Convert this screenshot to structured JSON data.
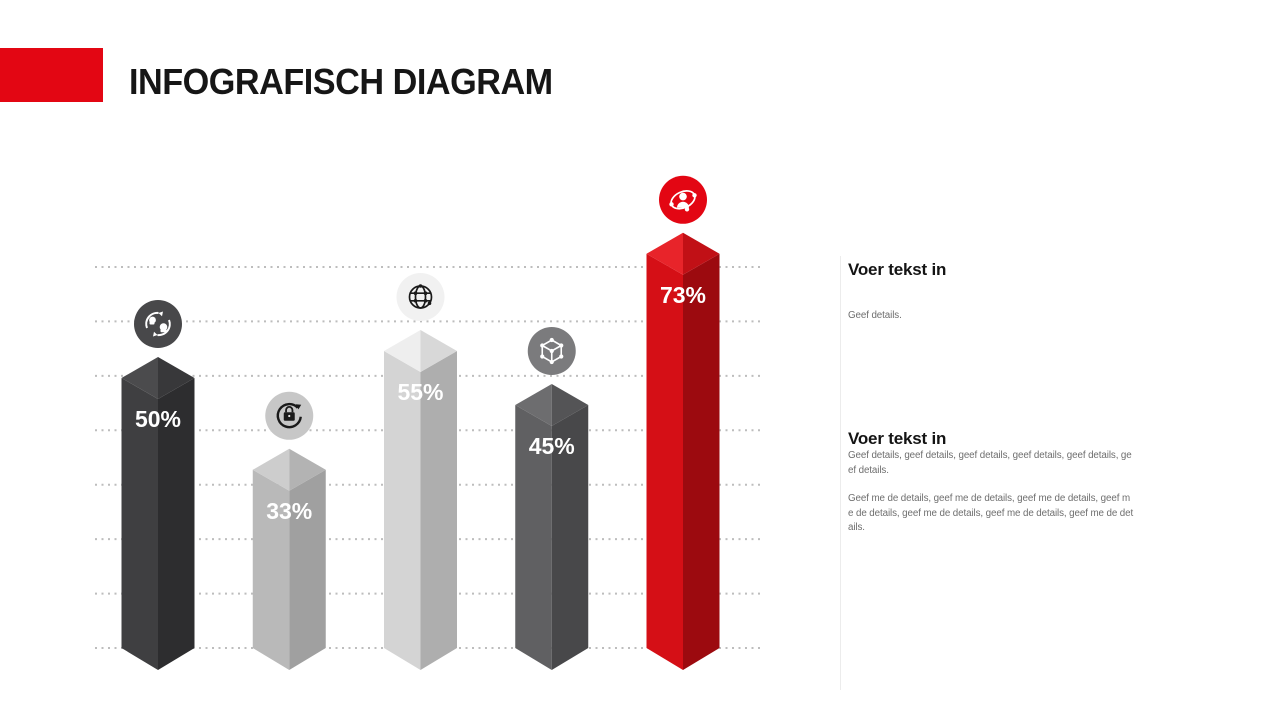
{
  "slide": {
    "title": "INFOGRAFISCH DIAGRAM",
    "accent_color": "#e30613"
  },
  "chart_data": {
    "type": "bar",
    "title": "INFOGRAFISCH DIAGRAM",
    "xlabel": "",
    "ylabel": "",
    "ylim": [
      0,
      100
    ],
    "grid": true,
    "gridline_count": 8,
    "value_suffix": "%",
    "categories": [
      "conversation-exchange",
      "lock-rotation",
      "globe",
      "cube-network",
      "user-orbit"
    ],
    "values": [
      50,
      33,
      55,
      45,
      73
    ],
    "bars": [
      {
        "label": "50%",
        "value": 50,
        "icon": "conversation-exchange-icon",
        "top_left": "#4b4b4d",
        "top_right": "#38383a",
        "face_left": "#3f3f41",
        "face_right": "#2d2d2f",
        "icon_bg": "#48484a",
        "icon_color": "#ffffff"
      },
      {
        "label": "33%",
        "value": 33,
        "icon": "lock-rotation-icon",
        "top_left": "#cdcdcd",
        "top_right": "#b3b3b3",
        "face_left": "#b9b9b9",
        "face_right": "#a0a0a0",
        "icon_bg": "#c7c7c7",
        "icon_color": "#1a1a1a"
      },
      {
        "label": "55%",
        "value": 55,
        "icon": "globe-icon",
        "top_left": "#eeeeee",
        "top_right": "#d8d8d8",
        "face_left": "#d4d4d4",
        "face_right": "#aeaeae",
        "icon_bg": "#f1f1f1",
        "icon_color": "#1a1a1a"
      },
      {
        "label": "45%",
        "value": 45,
        "icon": "cube-network-icon",
        "top_left": "#6d6d6f",
        "top_right": "#545456",
        "face_left": "#606062",
        "face_right": "#48484a",
        "icon_bg": "#7b7b7d",
        "icon_color": "#ffffff"
      },
      {
        "label": "73%",
        "value": 73,
        "icon": "user-orbit-icon",
        "top_left": "#e8242a",
        "top_right": "#c11016",
        "face_left": "#d50f16",
        "face_right": "#9c0a0f",
        "icon_bg": "#e30613",
        "icon_color": "#ffffff"
      }
    ],
    "gridline_color": "#bdbdbd"
  },
  "text_sections": [
    {
      "heading": "Voer tekst in",
      "paragraphs": [
        "Geef details."
      ]
    },
    {
      "heading": "Voer tekst in",
      "paragraphs": [
        "Geef details, geef details, geef details, geef details, geef details, geef details.",
        "Geef me de details, geef me de details, geef me de details, geef me de details, geef me de details, geef me de details, geef me de details."
      ]
    }
  ]
}
